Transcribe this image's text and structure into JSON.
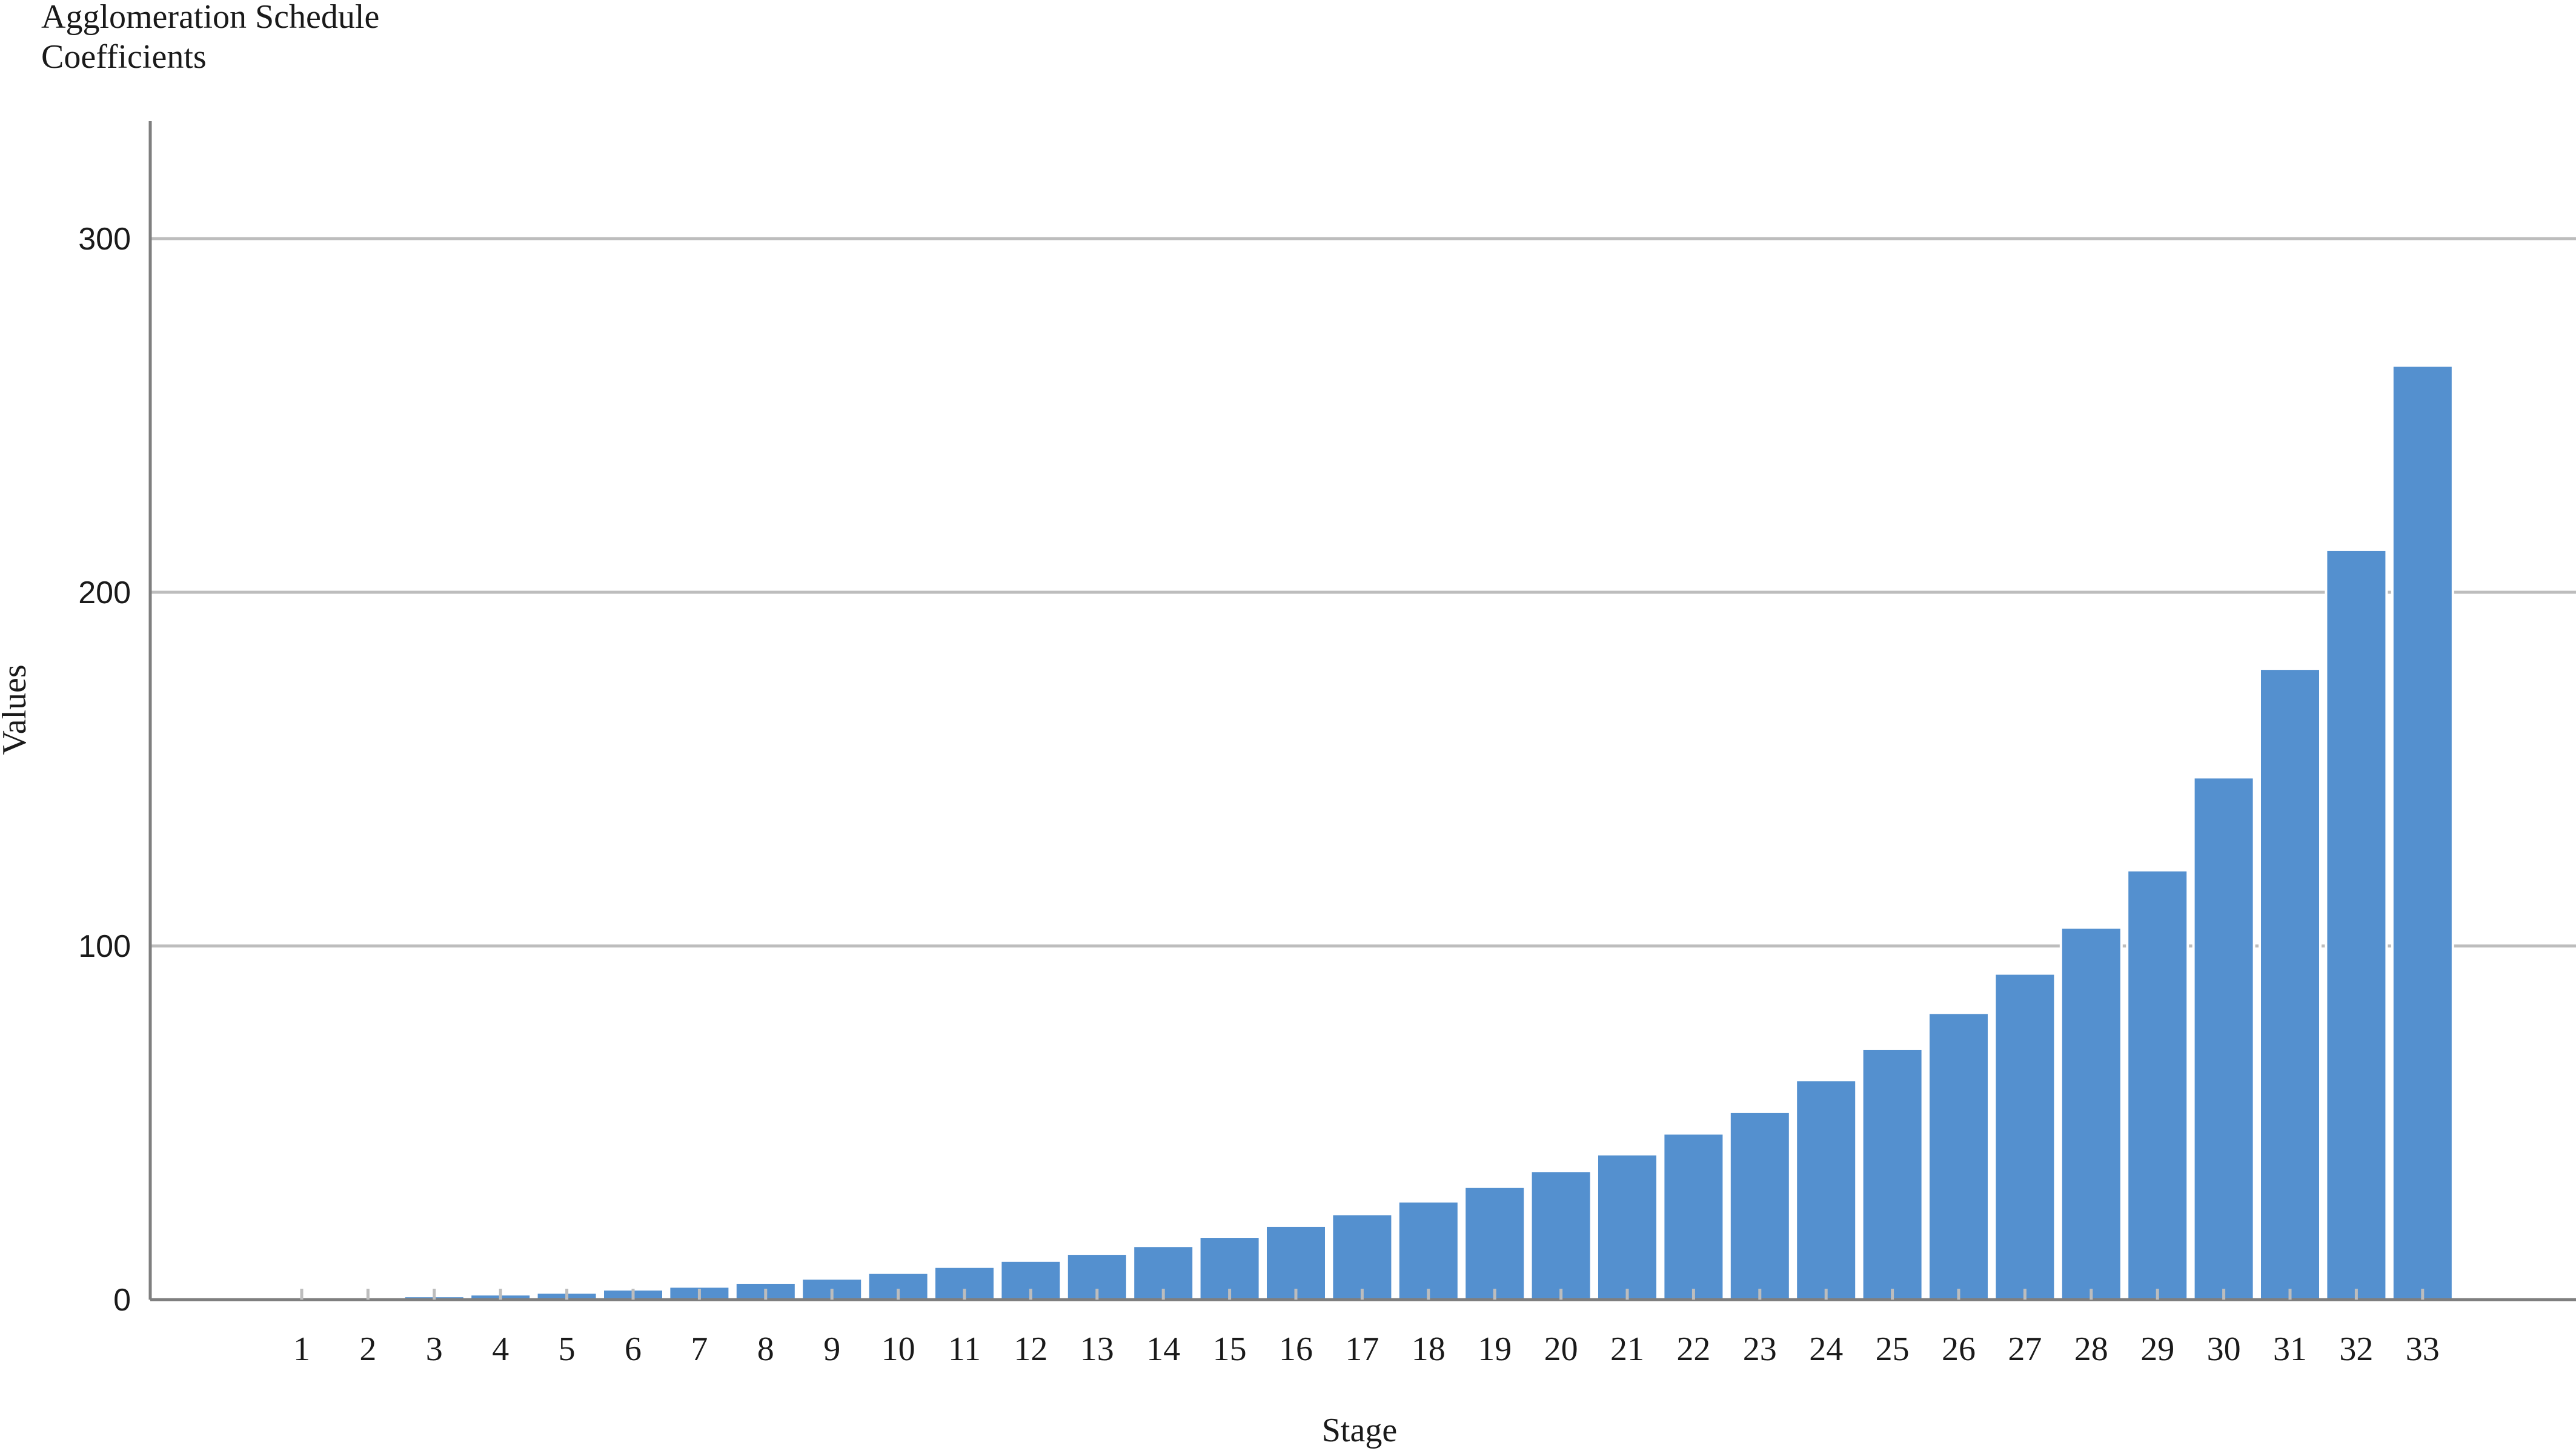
{
  "colors": {
    "bar_fill": "#5490CF",
    "bar_stroke": "#ffffff",
    "gridline": "#BDBDBD",
    "axis_line": "#7F7F7F",
    "text": "#1A1A1A",
    "background": "#ffffff"
  },
  "chart_data": {
    "type": "bar",
    "title": "Agglomeration Schedule",
    "subtitle": "Coefficients",
    "xlabel": "Stage",
    "ylabel": "Values",
    "ylim": [
      0,
      330
    ],
    "yticks": [
      0,
      100,
      200,
      300
    ],
    "ytick_labels": [
      "0",
      "100",
      "200",
      "300"
    ],
    "grid": "horizontal",
    "categories": [
      "1",
      "2",
      "3",
      "4",
      "5",
      "6",
      "7",
      "8",
      "9",
      "10",
      "11",
      "12",
      "13",
      "14",
      "15",
      "16",
      "17",
      "18",
      "19",
      "20",
      "21",
      "22",
      "23",
      "24",
      "25",
      "26",
      "27",
      "28",
      "29",
      "30",
      "31",
      "32",
      "33"
    ],
    "values": [
      0,
      0.5,
      1,
      1.5,
      2,
      2.9,
      3.7,
      4.8,
      6,
      7.6,
      9.3,
      11,
      13,
      15.2,
      17.8,
      20.9,
      24.2,
      27.8,
      31.9,
      36.4,
      41.1,
      47,
      53.1,
      62.1,
      70.9,
      81.1,
      92.2,
      105.2,
      121.4,
      147.7,
      178.4,
      212,
      264.1
    ]
  }
}
